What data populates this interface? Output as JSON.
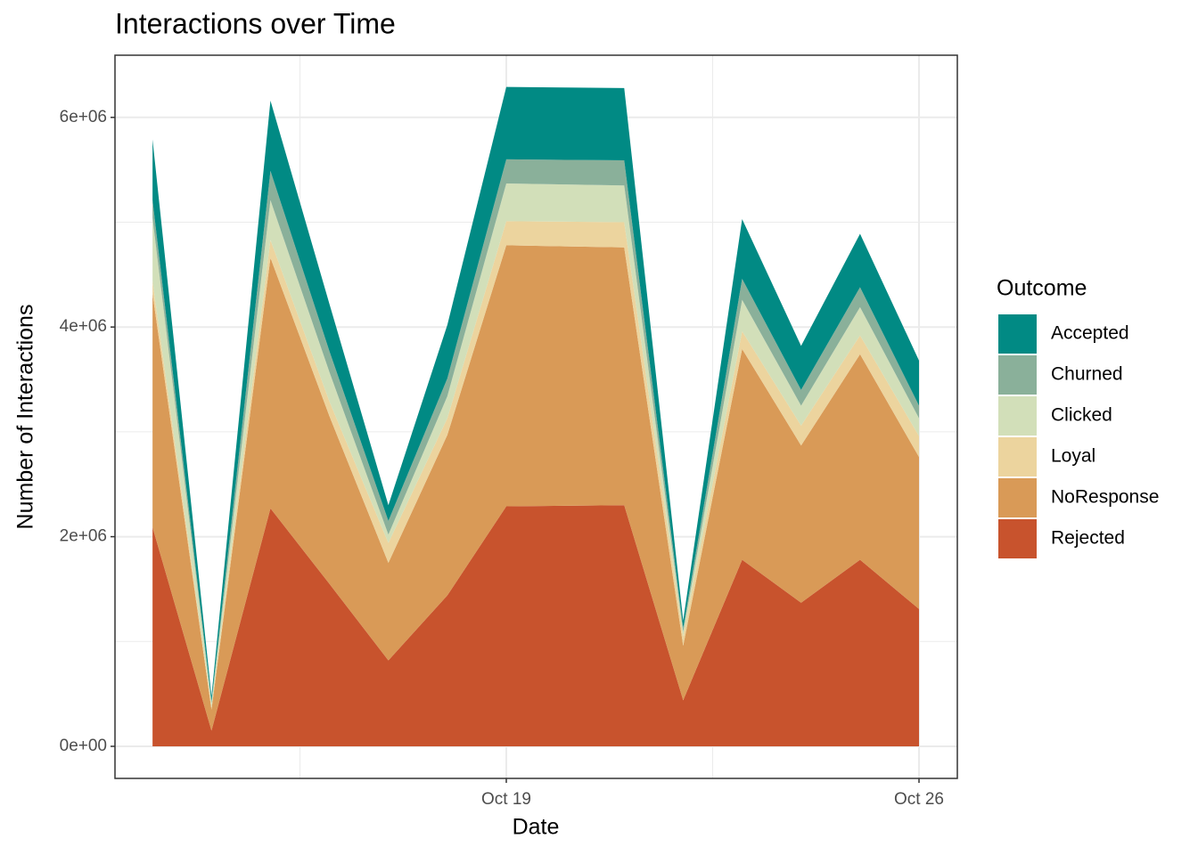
{
  "chart_data": {
    "type": "stacked_area",
    "title": "Interactions over Time",
    "x_label": "Date",
    "y_label": "Number of Interactions",
    "legend_title": "Outcome",
    "x": [
      13,
      14,
      15,
      16,
      17,
      18,
      19,
      20,
      21,
      22,
      23,
      24,
      25,
      26
    ],
    "xlim": [
      12.363,
      26.65
    ],
    "xticks": [
      {
        "value": 19,
        "label": "Oct 19"
      },
      {
        "value": 26,
        "label": "Oct 26"
      }
    ],
    "ylim": [
      -306000,
      6593000
    ],
    "yticks": [
      {
        "value": 0,
        "label": "0e+00"
      },
      {
        "value": 2000000,
        "label": "2e+06"
      },
      {
        "value": 4000000,
        "label": "4e+06"
      },
      {
        "value": 6000000,
        "label": "6e+06"
      }
    ],
    "grid": true,
    "legend": "right",
    "series": [
      {
        "name": "Rejected",
        "color": "#c8532d",
        "values": [
          2090000,
          150000,
          2270000,
          1550000,
          820000,
          1440000,
          2290000,
          2295000,
          2300000,
          440000,
          1780000,
          1370000,
          1780000,
          1310000
        ]
      },
      {
        "name": "NoResponse",
        "color": "#d99a57",
        "values": [
          2230000,
          200000,
          2390000,
          1600000,
          930000,
          1530000,
          2490000,
          2475000,
          2460000,
          520000,
          2010000,
          1500000,
          1960000,
          1450000
        ]
      },
      {
        "name": "Loyal",
        "color": "#ecd49e",
        "values": [
          120000,
          20000,
          170000,
          140000,
          190000,
          160000,
          230000,
          235000,
          240000,
          90000,
          170000,
          190000,
          180000,
          200000
        ]
      },
      {
        "name": "Clicked",
        "color": "#d2dfb9",
        "values": [
          600000,
          40000,
          380000,
          280000,
          80000,
          210000,
          360000,
          355000,
          350000,
          40000,
          300000,
          190000,
          270000,
          170000
        ]
      },
      {
        "name": "Churned",
        "color": "#8ab09a",
        "values": [
          170000,
          20000,
          280000,
          200000,
          130000,
          170000,
          230000,
          235000,
          240000,
          40000,
          200000,
          150000,
          190000,
          120000
        ]
      },
      {
        "name": "Accepted",
        "color": "#018a84",
        "values": [
          580000,
          50000,
          670000,
          450000,
          150000,
          510000,
          690000,
          690000,
          690000,
          70000,
          570000,
          420000,
          510000,
          430000
        ]
      }
    ]
  }
}
